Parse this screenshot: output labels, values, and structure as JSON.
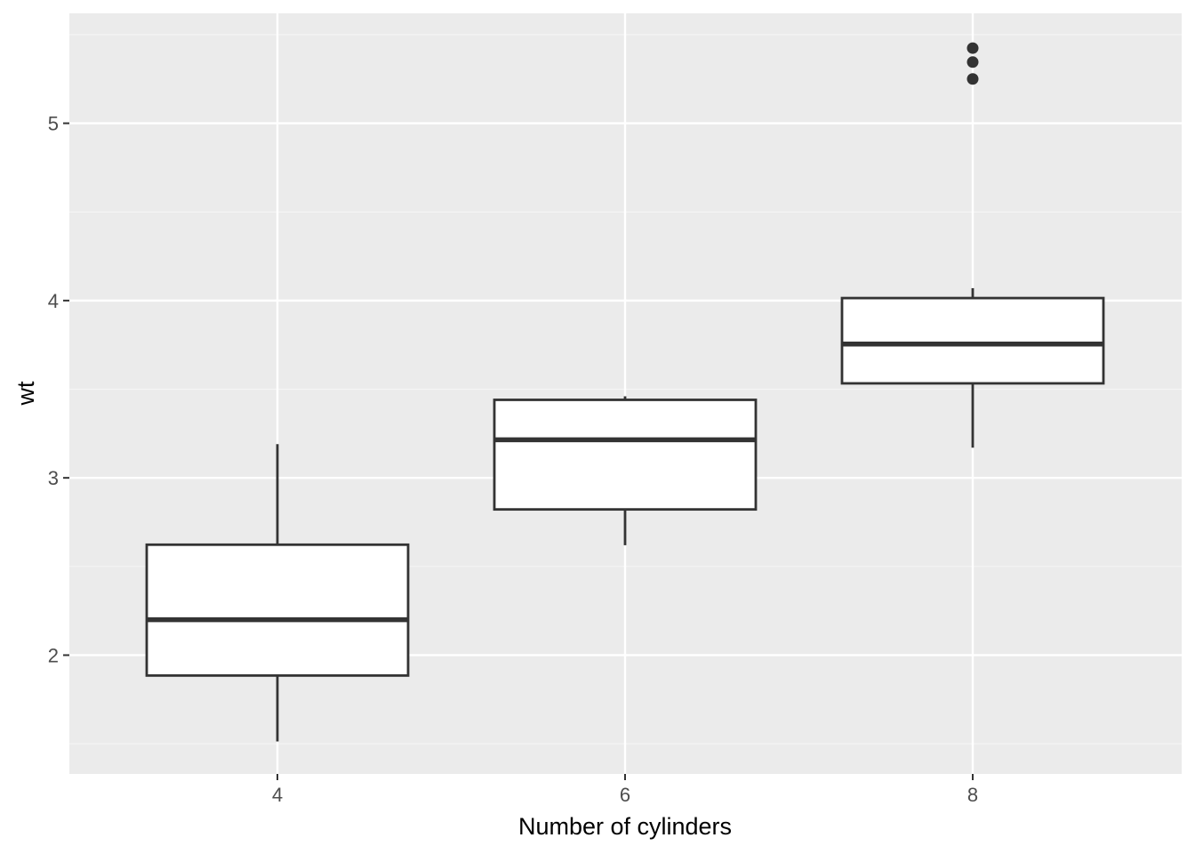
{
  "chart_data": {
    "type": "box",
    "xlabel": "Number of cylinders",
    "ylabel": "wt",
    "categories": [
      "4",
      "6",
      "8"
    ],
    "ylim": [
      1.33,
      5.62
    ],
    "y_ticks": [
      2,
      3,
      4,
      5
    ],
    "grid": true,
    "boxes": [
      {
        "category": "4",
        "whisker_low": 1.513,
        "q1": 1.885,
        "median": 2.2,
        "q3": 2.623,
        "whisker_high": 3.19,
        "outliers": []
      },
      {
        "category": "6",
        "whisker_low": 2.62,
        "q1": 2.822,
        "median": 3.215,
        "q3": 3.44,
        "whisker_high": 3.46,
        "outliers": []
      },
      {
        "category": "8",
        "whisker_low": 3.17,
        "q1": 3.533,
        "median": 3.755,
        "q3": 4.014,
        "whisker_high": 4.07,
        "outliers": [
          5.25,
          5.345,
          5.424
        ]
      }
    ],
    "colors": {
      "panel_background": "#ebebeb",
      "grid_major": "#ffffff",
      "grid_minor": "#f5f5f5",
      "box_fill": "#ffffff",
      "box_stroke": "#333333",
      "tick_text": "#4d4d4d",
      "title_text": "#000000"
    }
  }
}
